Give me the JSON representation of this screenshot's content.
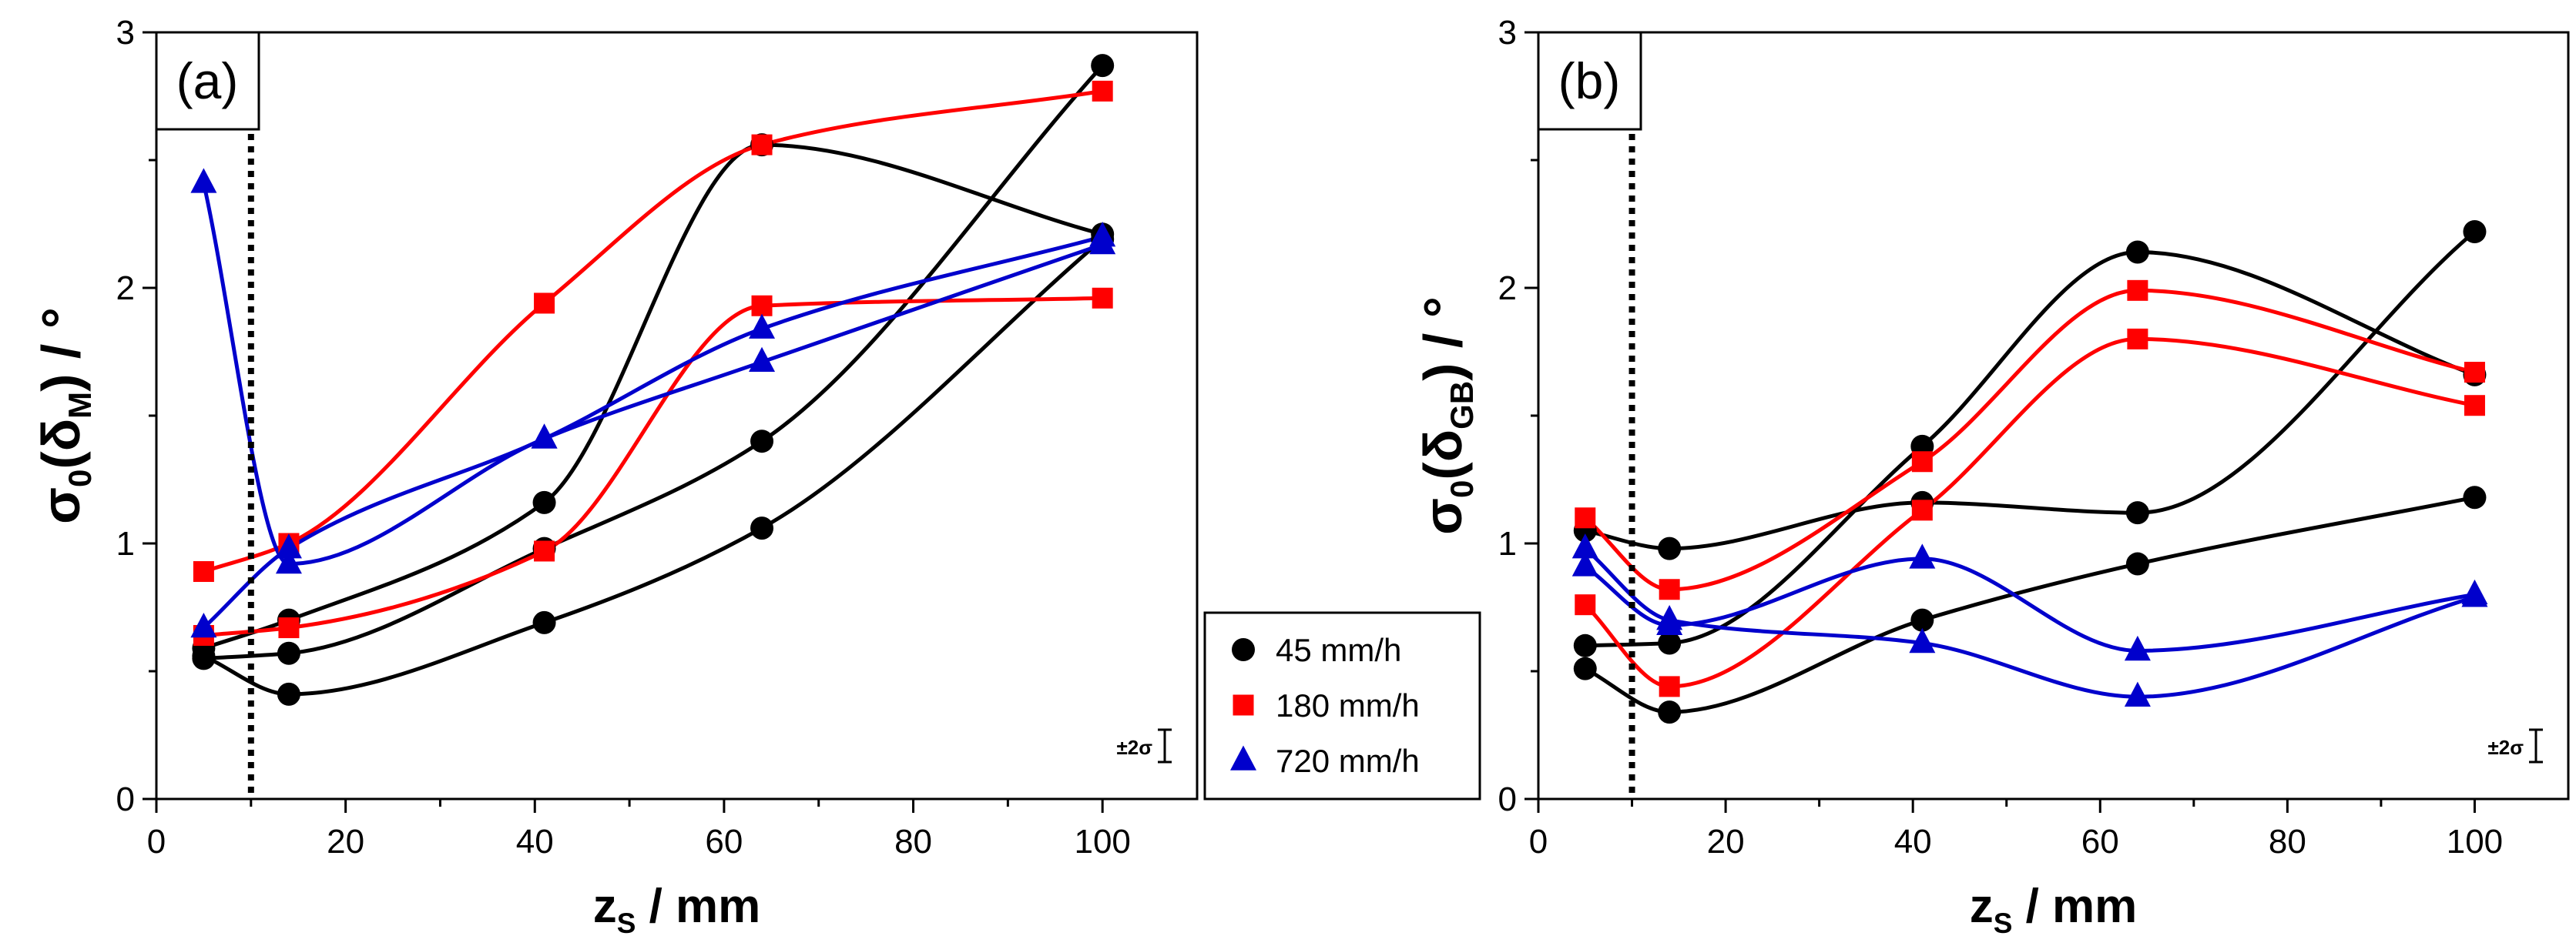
{
  "chart_data": [
    {
      "id": "a",
      "type": "line",
      "panel_label": "(a)",
      "xlabel": "z",
      "xlabel_sub": "S",
      "xlabel_suffix": " / mm",
      "ylabel": "σ",
      "ylabel_sub0": "0",
      "ylabel_mid": "(δ",
      "ylabel_sub1": "M",
      "ylabel_suffix": ")  / °",
      "xlim": [
        0,
        110
      ],
      "ylim": [
        0,
        3
      ],
      "xticks": [
        0,
        20,
        40,
        60,
        80,
        100
      ],
      "yticks": [
        0,
        1,
        2,
        3
      ],
      "vline_x": 10,
      "error_bar_label": "±2σ",
      "series": [
        {
          "name": "45 mm/h",
          "color": "#000000",
          "marker": "circle",
          "x": [
            5,
            14,
            41,
            64,
            100
          ],
          "y": [
            0.59,
            0.7,
            1.16,
            2.56,
            2.21
          ]
        },
        {
          "name": "45 mm/h",
          "color": "#000000",
          "marker": "circle",
          "x": [
            5,
            14,
            41,
            64,
            100
          ],
          "y": [
            0.55,
            0.57,
            0.98,
            1.4,
            2.87
          ]
        },
        {
          "name": "45 mm/h",
          "color": "#000000",
          "marker": "circle",
          "x": [
            5,
            14,
            41,
            64,
            100
          ],
          "y": [
            0.56,
            0.41,
            0.69,
            1.06,
            2.19
          ]
        },
        {
          "name": "180 mm/h",
          "color": "#ff0000",
          "marker": "square",
          "x": [
            5,
            14,
            41,
            64,
            100
          ],
          "y": [
            0.89,
            1.0,
            1.94,
            2.56,
            2.77
          ]
        },
        {
          "name": "180 mm/h",
          "color": "#ff0000",
          "marker": "square",
          "x": [
            5,
            14,
            41,
            64,
            100
          ],
          "y": [
            0.64,
            0.67,
            0.97,
            1.93,
            1.96
          ]
        },
        {
          "name": "720 mm/h",
          "color": "#0000cc",
          "marker": "triangle",
          "x": [
            5,
            14,
            41,
            64,
            100
          ],
          "y": [
            2.41,
            0.92,
            1.41,
            1.71,
            2.17
          ]
        },
        {
          "name": "720 mm/h",
          "color": "#0000cc",
          "marker": "triangle",
          "x": [
            5,
            14,
            41,
            64,
            100
          ],
          "y": [
            0.67,
            0.98,
            1.41,
            1.84,
            2.2
          ]
        }
      ]
    },
    {
      "id": "b",
      "type": "line",
      "panel_label": "(b)",
      "xlabel": "z",
      "xlabel_sub": "S",
      "xlabel_suffix": " / mm",
      "ylabel": "σ",
      "ylabel_sub0": "0",
      "ylabel_mid": "(δ",
      "ylabel_sub1": "GB",
      "ylabel_suffix": ")  / °",
      "xlim": [
        0,
        110
      ],
      "ylim": [
        0,
        3
      ],
      "xticks": [
        0,
        20,
        40,
        60,
        80,
        100
      ],
      "yticks": [
        0,
        1,
        2,
        3
      ],
      "vline_x": 10,
      "error_bar_label": "±2σ",
      "series": [
        {
          "name": "45 mm/h",
          "color": "#000000",
          "marker": "circle",
          "x": [
            5,
            14,
            41,
            64,
            100
          ],
          "y": [
            1.05,
            0.98,
            1.16,
            1.12,
            2.22
          ]
        },
        {
          "name": "45 mm/h",
          "color": "#000000",
          "marker": "circle",
          "x": [
            5,
            14,
            41,
            64,
            100
          ],
          "y": [
            0.6,
            0.61,
            1.38,
            2.14,
            1.66
          ]
        },
        {
          "name": "45 mm/h",
          "color": "#000000",
          "marker": "circle",
          "x": [
            5,
            14,
            41,
            64,
            100
          ],
          "y": [
            0.51,
            0.34,
            0.7,
            0.92,
            1.18
          ]
        },
        {
          "name": "180 mm/h",
          "color": "#ff0000",
          "marker": "square",
          "x": [
            5,
            14,
            41,
            64,
            100
          ],
          "y": [
            1.1,
            0.82,
            1.32,
            1.99,
            1.67
          ]
        },
        {
          "name": "180 mm/h",
          "color": "#ff0000",
          "marker": "square",
          "x": [
            5,
            14,
            41,
            64,
            100
          ],
          "y": [
            0.76,
            0.44,
            1.13,
            1.8,
            1.54
          ]
        },
        {
          "name": "720 mm/h",
          "color": "#0000cc",
          "marker": "triangle",
          "x": [
            5,
            14,
            41,
            64,
            100
          ],
          "y": [
            0.98,
            0.7,
            0.61,
            0.4,
            0.79
          ]
        },
        {
          "name": "720 mm/h",
          "color": "#0000cc",
          "marker": "triangle",
          "x": [
            5,
            14,
            41,
            64,
            100
          ],
          "y": [
            0.91,
            0.68,
            0.94,
            0.58,
            0.8
          ]
        }
      ]
    }
  ],
  "legend": {
    "items": [
      {
        "label": "45 mm/h",
        "color": "#000000",
        "marker": "circle"
      },
      {
        "label": "180 mm/h",
        "color": "#ff0000",
        "marker": "square"
      },
      {
        "label": "720 mm/h",
        "color": "#0000cc",
        "marker": "triangle"
      }
    ]
  }
}
